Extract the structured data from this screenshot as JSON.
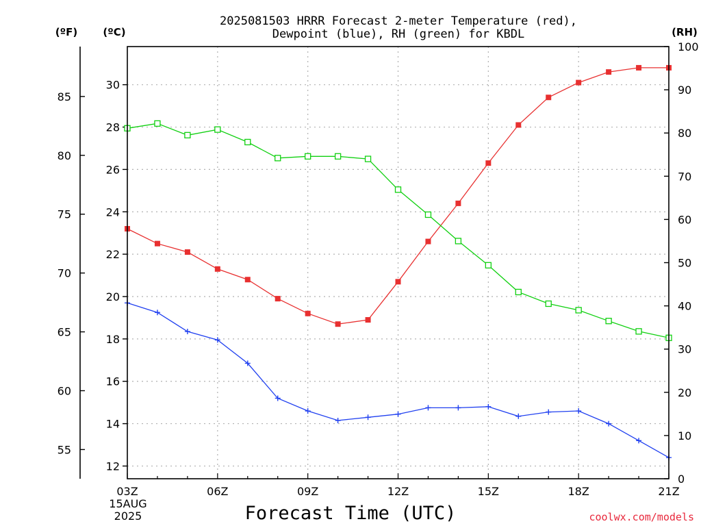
{
  "title_line1": "2025081503 HRRR Forecast 2-meter Temperature (red),",
  "title_line2": "Dewpoint (blue), RH (green) for KBDL",
  "unit_f": "(ºF)",
  "unit_c": "(ºC)",
  "unit_rh": "(RH)",
  "xlabel": "Forecast Time (UTC)",
  "x_date_day": "15AUG",
  "x_date_year": "2025",
  "credit": "coolwx.com/models",
  "colors": {
    "temperature": "#e83030",
    "dewpoint": "#2040f0",
    "rh": "#10d010"
  },
  "chart_data": {
    "type": "line",
    "x": [
      "03Z",
      "04Z",
      "05Z",
      "06Z",
      "07Z",
      "08Z",
      "09Z",
      "10Z",
      "11Z",
      "12Z",
      "13Z",
      "14Z",
      "15Z",
      "16Z",
      "17Z",
      "18Z",
      "19Z",
      "20Z",
      "21Z"
    ],
    "x_tick_labels": [
      "03Z",
      "06Z",
      "09Z",
      "12Z",
      "15Z",
      "18Z",
      "21Z"
    ],
    "ylim_c": [
      11.4,
      31.8
    ],
    "yticks_c": [
      12,
      14,
      16,
      18,
      20,
      22,
      24,
      26,
      28,
      30
    ],
    "yticks_f": [
      55,
      60,
      65,
      70,
      75,
      80,
      85
    ],
    "ylim_rh": [
      0,
      100
    ],
    "yticks_rh": [
      0,
      10,
      20,
      30,
      40,
      50,
      60,
      70,
      80,
      90,
      100
    ],
    "grid": true,
    "series": [
      {
        "key": "temperature",
        "axis": "c",
        "marker": "filled-square",
        "values": [
          23.2,
          22.5,
          22.1,
          21.3,
          20.8,
          19.9,
          19.2,
          18.7,
          18.9,
          20.7,
          22.6,
          24.4,
          26.3,
          28.1,
          29.4,
          30.1,
          30.6,
          30.8,
          30.8
        ]
      },
      {
        "key": "dewpoint",
        "axis": "c",
        "marker": "plus",
        "values": [
          19.7,
          19.25,
          18.35,
          17.95,
          16.85,
          15.2,
          14.6,
          14.15,
          14.3,
          14.45,
          14.75,
          14.75,
          14.8,
          14.35,
          14.55,
          14.6,
          14.0,
          13.2,
          12.4
        ]
      },
      {
        "key": "rh",
        "axis": "rh",
        "marker": "open-square",
        "values": [
          81.1,
          82.2,
          79.5,
          80.8,
          77.9,
          74.2,
          74.6,
          74.6,
          74.0,
          66.9,
          61.1,
          55.0,
          49.4,
          43.2,
          40.5,
          39.0,
          36.5,
          34.1,
          32.6
        ]
      }
    ]
  }
}
